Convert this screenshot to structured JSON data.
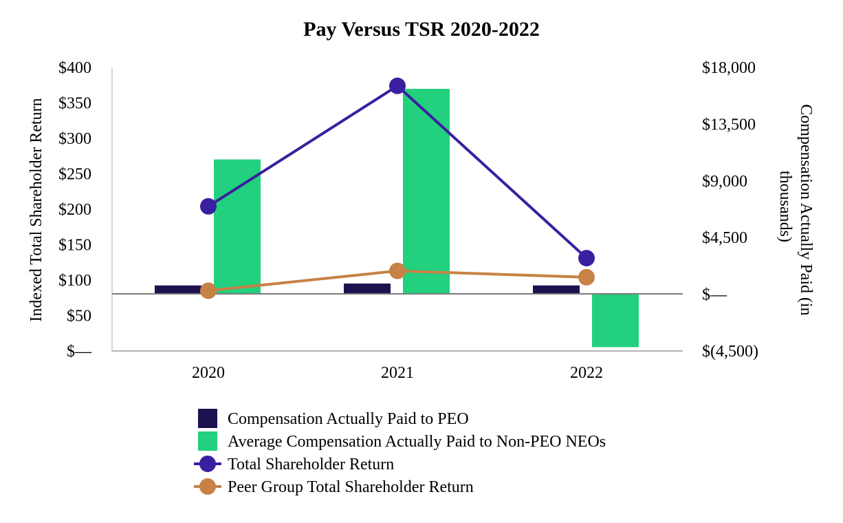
{
  "chart_data": {
    "type": "bar",
    "title": "Pay Versus TSR 2020-2022",
    "categories": [
      "2020",
      "2021",
      "2022"
    ],
    "ylabel_left": "Indexed Total Shareholder Return",
    "ylabel_right_line1": "Compensation Actually Paid (in",
    "ylabel_right_line2": "thousands)",
    "y_left": {
      "range": [
        0,
        400
      ],
      "ticks": [
        0,
        50,
        100,
        150,
        200,
        250,
        300,
        350,
        400
      ],
      "tick_labels": [
        "$—",
        "$50",
        "$100",
        "$150",
        "$200",
        "$250",
        "$300",
        "$350",
        "$400"
      ]
    },
    "y_right": {
      "range": [
        -4500,
        18000
      ],
      "ticks": [
        -4500,
        0,
        4500,
        9000,
        13500,
        18000
      ],
      "tick_labels": [
        "$(4,500)",
        "$—",
        "$4,500",
        "$9,000",
        "$13,500",
        "$18,000"
      ]
    },
    "grid": false,
    "legend_position": "bottom",
    "series": [
      {
        "name": "Compensation Actually Paid to PEO",
        "type": "bar",
        "axis": "right",
        "color": "#1c1250",
        "values": [
          700,
          850,
          700
        ]
      },
      {
        "name": "Average Compensation Actually Paid to Non-PEO NEOs",
        "type": "bar",
        "axis": "right",
        "color": "#22d07e",
        "values": [
          10700,
          16300,
          -4200
        ]
      },
      {
        "name": "Total Shareholder Return",
        "type": "line",
        "axis": "left",
        "color": "#3a1fa0",
        "values": [
          204,
          374,
          131
        ]
      },
      {
        "name": "Peer Group Total Shareholder Return",
        "type": "line",
        "axis": "left",
        "color": "#c78245",
        "values": [
          85,
          113,
          104
        ]
      }
    ]
  }
}
